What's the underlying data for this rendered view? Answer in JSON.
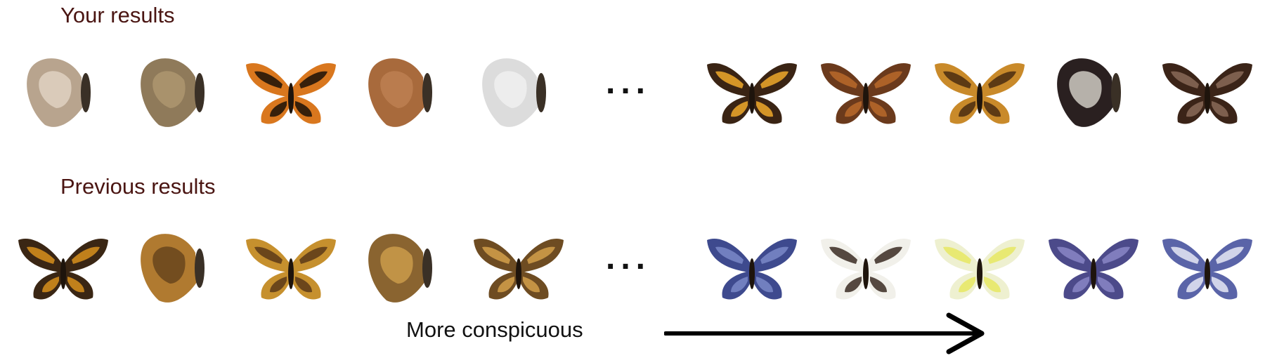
{
  "rows": {
    "yours": {
      "title": "Your results",
      "specimens": [
        {
          "name": "pale-mottled-side-view",
          "wing": "#b8a48e",
          "accent": "#e8dccd",
          "pose": "side"
        },
        {
          "name": "brown-side-view",
          "wing": "#8f7a5a",
          "accent": "#b39c74",
          "pose": "side"
        },
        {
          "name": "monarch",
          "wing": "#d9771e",
          "accent": "#1a1008",
          "pose": "open"
        },
        {
          "name": "dead-leaf",
          "wing": "#a86a3c",
          "accent": "#c28456",
          "pose": "side"
        },
        {
          "name": "white-side-view",
          "wing": "#dcdcdc",
          "accent": "#f4f4f4",
          "pose": "side"
        },
        {
          "name": "orange-banded-dark",
          "wing": "#3a2414",
          "accent": "#f0a92a",
          "pose": "open"
        },
        {
          "name": "brown-eyespot",
          "wing": "#6b3a1c",
          "accent": "#b86a2a",
          "pose": "open"
        },
        {
          "name": "orange-skipper",
          "wing": "#c98a2a",
          "accent": "#4a2c10",
          "pose": "open"
        },
        {
          "name": "white-jezebel",
          "wing": "#2a2020",
          "accent": "#f2efe6",
          "pose": "side"
        },
        {
          "name": "dark-brown-white-spots",
          "wing": "#3b2418",
          "accent": "#8a6a58",
          "pose": "open"
        }
      ]
    },
    "previous": {
      "title": "Previous results",
      "specimens": [
        {
          "name": "dark-skipper-open",
          "wing": "#3a2614",
          "accent": "#d8901c",
          "pose": "open"
        },
        {
          "name": "orange-skipper-side",
          "wing": "#b07a30",
          "accent": "#5a3a18",
          "pose": "side"
        },
        {
          "name": "tawny-skipper",
          "wing": "#c6902e",
          "accent": "#5a3a18",
          "pose": "open"
        },
        {
          "name": "brown-skipper-side",
          "wing": "#8a6430",
          "accent": "#d8a650",
          "pose": "side"
        },
        {
          "name": "banded-skipper",
          "wing": "#6e4c22",
          "accent": "#d4a04a",
          "pose": "open"
        },
        {
          "name": "blue-morpho-small",
          "wing": "#3e4a8e",
          "accent": "#7a88c8",
          "pose": "open"
        },
        {
          "name": "white-dark-border",
          "wing": "#f1f0ea",
          "accent": "#3a2a22",
          "pose": "open"
        },
        {
          "name": "yellow-white",
          "wing": "#eef0d0",
          "accent": "#e6e862",
          "pose": "open"
        },
        {
          "name": "purple-blue",
          "wing": "#4c4a8a",
          "accent": "#8a86c6",
          "pose": "open"
        },
        {
          "name": "blue-white",
          "wing": "#5a64a8",
          "accent": "#e6e8f4",
          "pose": "open"
        }
      ]
    }
  },
  "ellipsis": "...",
  "axis_label": "More conspicuous",
  "colors": {
    "title": "#4a1512",
    "arrow": "#000000"
  }
}
